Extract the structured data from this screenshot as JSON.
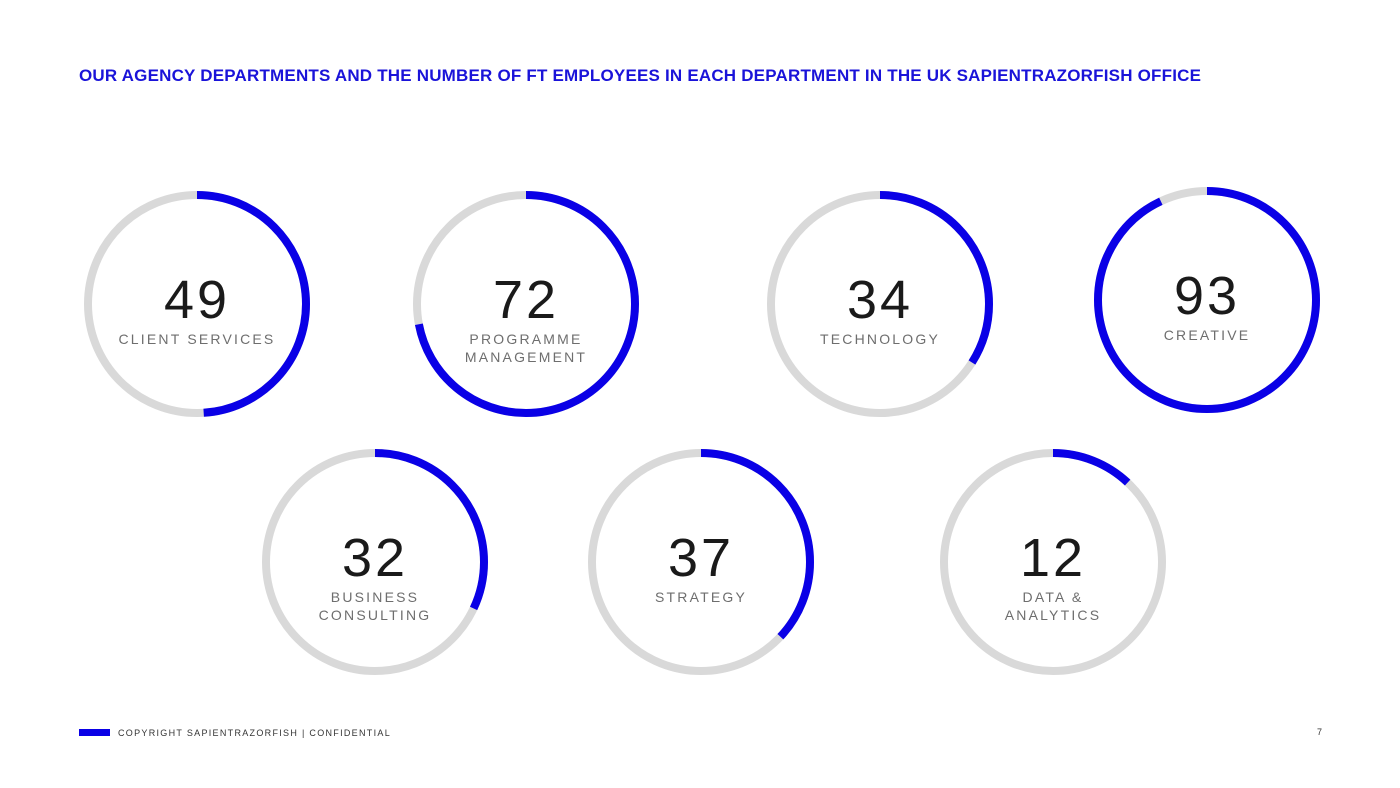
{
  "title": "OUR AGENCY DEPARTMENTS AND THE NUMBER OF FT EMPLOYEES IN EACH DEPARTMENT IN THE UK SAPIENTRAZORFISH OFFICE",
  "footer": {
    "copyright": "COPYRIGHT SAPIENTRAZORFISH | CONFIDENTIAL",
    "page_number": "7"
  },
  "colors": {
    "accent": "#0a00e6",
    "title": "#1a13d9",
    "track": "#d9d9d9",
    "number": "#1a1a1a",
    "label": "#6e6e6e"
  },
  "chart_data": {
    "type": "radial-progress",
    "title": "OUR AGENCY DEPARTMENTS AND THE NUMBER OF FT EMPLOYEES IN EACH DEPARTMENT IN THE UK SAPIENTRAZORFISH OFFICE",
    "scale_max": 100,
    "items": [
      {
        "value": 49,
        "label_lines": [
          "CLIENT SERVICES"
        ]
      },
      {
        "value": 72,
        "label_lines": [
          "PROGRAMME",
          "MANAGEMENT"
        ]
      },
      {
        "value": 34,
        "label_lines": [
          "TECHNOLOGY"
        ]
      },
      {
        "value": 93,
        "label_lines": [
          "CREATIVE"
        ]
      },
      {
        "value": 32,
        "label_lines": [
          "BUSINESS",
          "CONSULTING"
        ]
      },
      {
        "value": 37,
        "label_lines": [
          "STRATEGY"
        ]
      },
      {
        "value": 12,
        "label_lines": [
          "DATA &",
          "ANALYTICS"
        ]
      }
    ]
  }
}
